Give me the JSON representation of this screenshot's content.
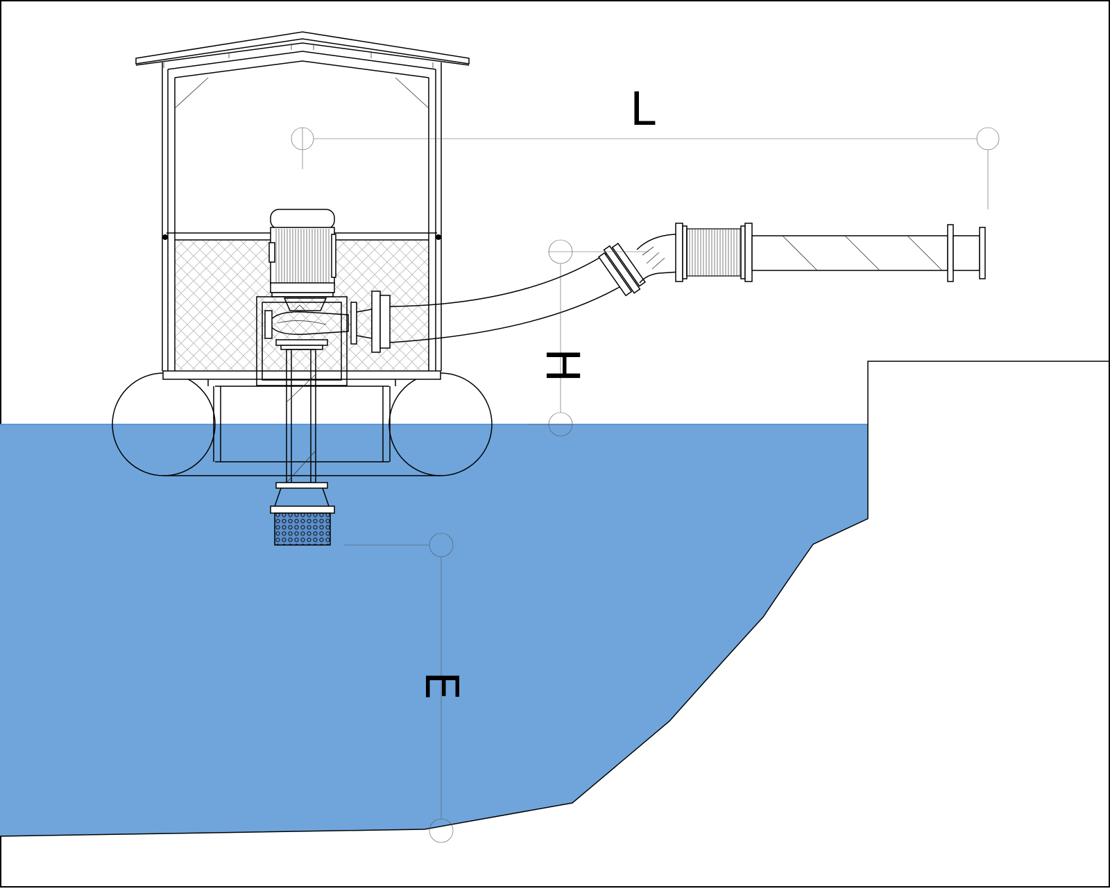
{
  "labels": {
    "length": "L",
    "head": "H",
    "depth": "E"
  },
  "colors": {
    "water": "#6fa5db",
    "water_line": "#4a86c5",
    "line": "#000000",
    "background": "#ffffff",
    "mesh": "#b8b8b8"
  },
  "parts": {
    "shelter": "pump-house",
    "floats": "pontoons",
    "motor": "electric-motor",
    "pump": "centrifugal-pump",
    "strainer": "suction-strainer",
    "hose": "flexible-discharge-hose",
    "pipe": "discharge-pipe"
  }
}
